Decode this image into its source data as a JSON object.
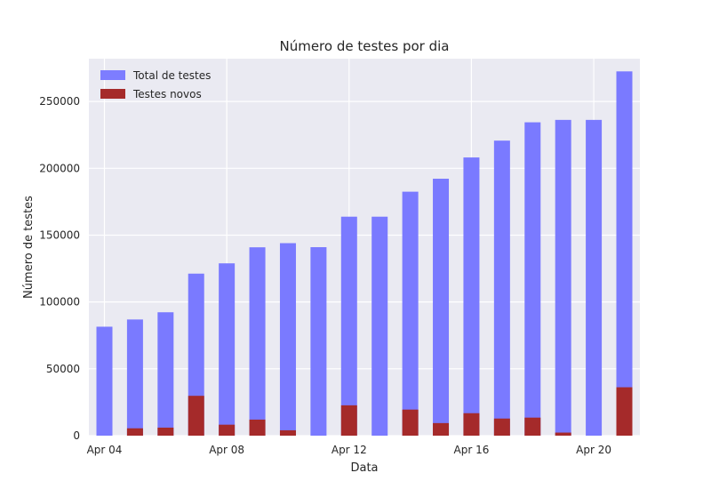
{
  "chart_data": {
    "type": "bar",
    "title": "Número de testes por dia",
    "xlabel": "Data",
    "ylabel": "Número de testes",
    "ylim": [
      0,
      282000
    ],
    "xticks": [
      "Apr 04",
      "Apr 08",
      "Apr 12",
      "Apr 16",
      "Apr 20"
    ],
    "yticks": [
      "0",
      "50000",
      "100000",
      "150000",
      "200000",
      "250000"
    ],
    "grid": true,
    "legend_position": "top-left",
    "categories": [
      "2020-04-04",
      "2020-04-05",
      "2020-04-06",
      "2020-04-07",
      "2020-04-08",
      "2020-04-09",
      "2020-04-10",
      "2020-04-11",
      "2020-04-12",
      "2020-04-13",
      "2020-04-14",
      "2020-04-15",
      "2020-04-16",
      "2020-04-17",
      "2020-04-18",
      "2020-04-19",
      "2020-04-20",
      "2020-04-21"
    ],
    "series": [
      {
        "name": "Total de testes",
        "color": "#7a7aff",
        "values": [
          81500,
          86900,
          92300,
          121200,
          128900,
          140900,
          144000,
          141000,
          163800,
          163800,
          182500,
          192200,
          208100,
          220700,
          234400,
          236200,
          236200,
          272500
        ]
      },
      {
        "name": "Testes novos",
        "color": "#a52a2a",
        "values": [
          0,
          5500,
          6000,
          29800,
          8200,
          12000,
          4000,
          0,
          22700,
          0,
          19500,
          9400,
          16800,
          12800,
          13500,
          2300,
          0,
          36200
        ]
      }
    ]
  }
}
